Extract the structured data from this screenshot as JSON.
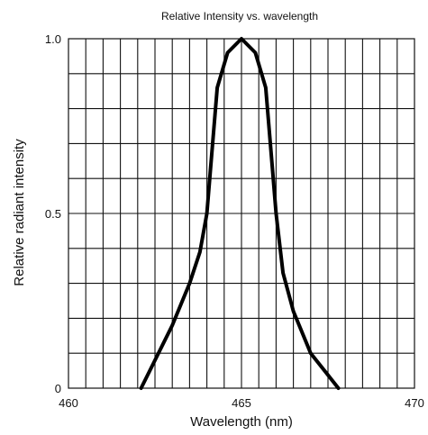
{
  "chart_data": {
    "type": "line",
    "title": "Relative Intensity vs. wavelength",
    "xlabel": "Wavelength (nm)",
    "ylabel": "Relative radiant intensity",
    "xlim": [
      460,
      470
    ],
    "ylim": [
      0,
      1.0
    ],
    "x_ticks": [
      460,
      465,
      470
    ],
    "y_ticks": [
      0,
      0.5,
      1.0
    ],
    "x_tick_labels": [
      "460",
      "465",
      "470"
    ],
    "y_tick_labels": [
      "0",
      "0.5",
      "1.0"
    ],
    "x_grid_step": 0.5,
    "y_grid_step": 0.1,
    "grid": true,
    "series": [
      {
        "x": [
          462.1,
          462.5,
          463.0,
          463.5,
          463.8,
          464.0,
          464.1,
          464.3,
          464.6,
          465.0,
          465.4,
          465.7,
          465.9,
          466.0,
          466.2,
          466.5,
          467.0,
          467.4,
          467.8
        ],
        "y": [
          0.0,
          0.08,
          0.18,
          0.3,
          0.39,
          0.5,
          0.62,
          0.86,
          0.96,
          1.0,
          0.96,
          0.86,
          0.62,
          0.5,
          0.33,
          0.22,
          0.1,
          0.05,
          0.0
        ]
      }
    ],
    "colors": {
      "curve": "#000000",
      "grid": "#111111"
    }
  }
}
